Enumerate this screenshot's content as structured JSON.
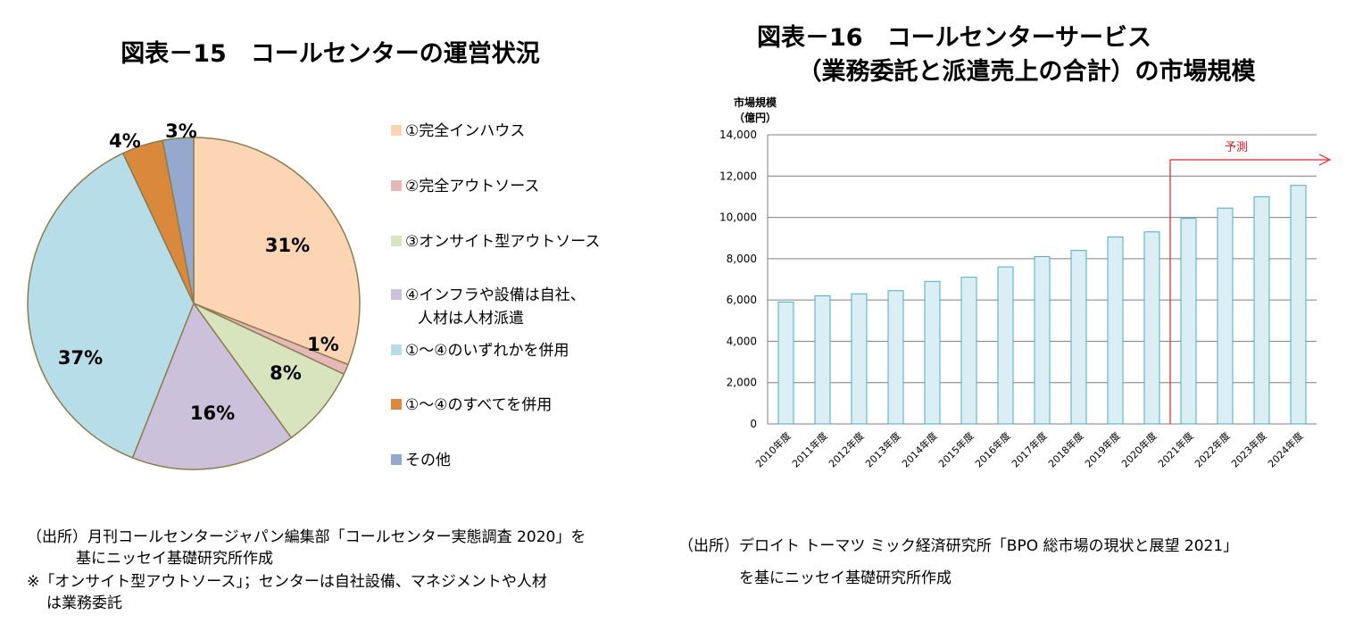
{
  "left_panel": {
    "title": "図表－15　コールセンターの運営状況",
    "source_line1": "（出所）月刊コールセンタージャパン編集部「コールセンター実態調査 2020」を",
    "source_line2": "基にニッセイ基礎研究所作成",
    "note_line1": "※「オンサイト型アウトソース」；センターは自社設備、マネジメントや人材",
    "note_line2": "は業務委託"
  },
  "right_panel": {
    "title_line1": "図表－16　コールセンターサービス",
    "title_line2": "（業務委託と派遣売上の合計）の市場規模",
    "source_line1": "（出所）デロイト トーマツ ミック経済研究所「BPO 総市場の現状と展望 2021」",
    "source_line2": "を基にニッセイ基礎研究所作成"
  },
  "chart_data": [
    {
      "type": "pie",
      "title": "図表－15　コールセンターの運営状況",
      "legend_position": "right",
      "slices": [
        {
          "label": "①完全インハウス",
          "value": 31,
          "value_label": "31%",
          "color": "#fcd5b5"
        },
        {
          "label": "②完全アウトソース",
          "value": 1,
          "value_label": "1%",
          "color": "#e6b9b8"
        },
        {
          "label": "③オンサイト型アウトソース",
          "value": 8,
          "value_label": "8%",
          "color": "#d7e4bd"
        },
        {
          "label": "④インフラや設備は自社、\n人材は人材派遣",
          "value": 16,
          "value_label": "16%",
          "color": "#ccc1da"
        },
        {
          "label": "①～④のいずれかを併用",
          "value": 37,
          "value_label": "37%",
          "color": "#b7dee8"
        },
        {
          "label": "①～④のすべてを併用",
          "value": 4,
          "value_label": "4%",
          "color": "#d9883c"
        },
        {
          "label": "その他",
          "value": 3,
          "value_label": "3%",
          "color": "#95a9ce"
        }
      ],
      "slice_border_color": "#8b7d50"
    },
    {
      "type": "bar",
      "title": "図表－16　コールセンターサービス（業務委託と派遣売上の合計）の市場規模",
      "ylabel_line1": "市場規模",
      "ylabel_line2": "（億円）",
      "categories": [
        "2010年度",
        "2011年度",
        "2012年度",
        "2013年度",
        "2014年度",
        "2015年度",
        "2016年度",
        "2017年度",
        "2018年度",
        "2019年度",
        "2020年度",
        "2021年度",
        "2022年度",
        "2023年度",
        "2024年度"
      ],
      "values": [
        5900,
        6200,
        6300,
        6450,
        6900,
        7100,
        7600,
        8100,
        8400,
        9050,
        9300,
        9950,
        10450,
        11000,
        11550
      ],
      "ylim": [
        0,
        14000
      ],
      "ytick_values": [
        0,
        2000,
        4000,
        6000,
        8000,
        10000,
        12000,
        14000
      ],
      "ytick_labels": [
        "0",
        "2,000",
        "4,000",
        "6,000",
        "8,000",
        "10,000",
        "12,000",
        "14,000"
      ],
      "grid": true,
      "bar_color": "#dbeef4",
      "bar_edge_color": "#4bacc6",
      "forecast": {
        "label": "予測",
        "start_after_category": "2020年度",
        "color": "#e0202a"
      }
    }
  ]
}
